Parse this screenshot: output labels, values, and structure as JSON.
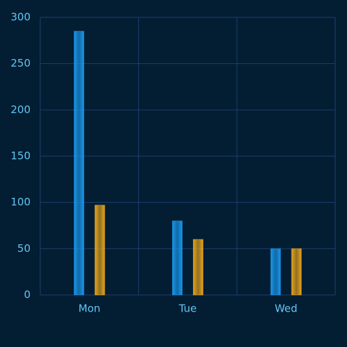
{
  "chart_data": {
    "type": "bar",
    "categories": [
      "Mon",
      "Tue",
      "Wed"
    ],
    "series": [
      {
        "color": "#1a9cf2",
        "values": [
          285,
          80,
          50
        ]
      },
      {
        "color": "#f0a81a",
        "values": [
          97,
          60,
          50
        ]
      }
    ],
    "ylim": [
      0,
      300
    ],
    "yticks": [
      0,
      50,
      100,
      150,
      200,
      250,
      300
    ],
    "grid": true
  }
}
